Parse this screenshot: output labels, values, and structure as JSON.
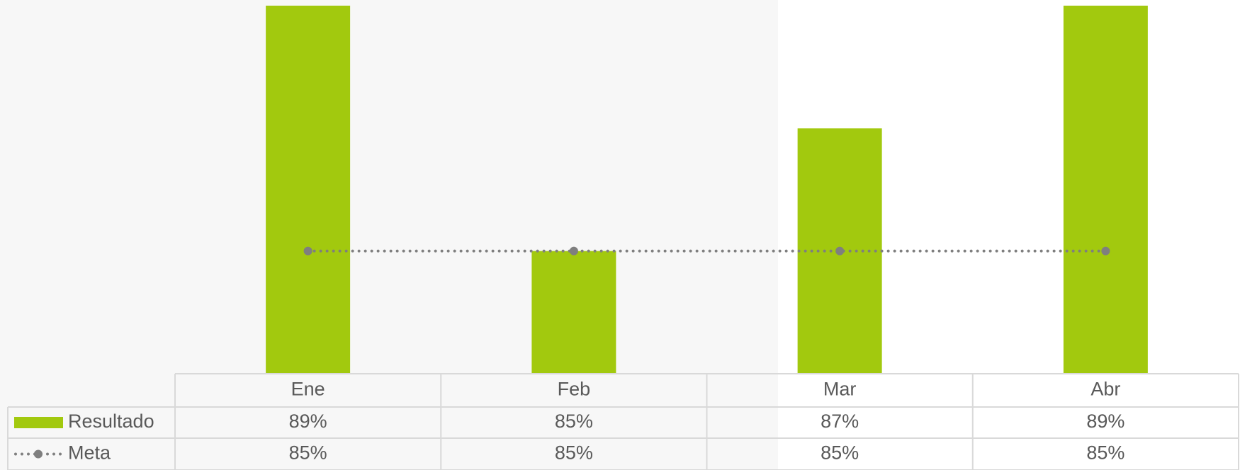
{
  "chart_data": {
    "type": "bar",
    "categories": [
      "Ene",
      "Feb",
      "Mar",
      "Abr"
    ],
    "ylim": [
      83,
      89
    ],
    "series": [
      {
        "name": "Resultado",
        "type": "bar",
        "color": "#a2c90e",
        "values": [
          89,
          85,
          87,
          89
        ],
        "value_labels": [
          "89%",
          "85%",
          "87%",
          "89%"
        ]
      },
      {
        "name": "Meta",
        "type": "line",
        "color": "#7f7f7f",
        "values": [
          85,
          85,
          85,
          85
        ],
        "value_labels": [
          "85%",
          "85%",
          "85%",
          "85%"
        ]
      }
    ]
  }
}
